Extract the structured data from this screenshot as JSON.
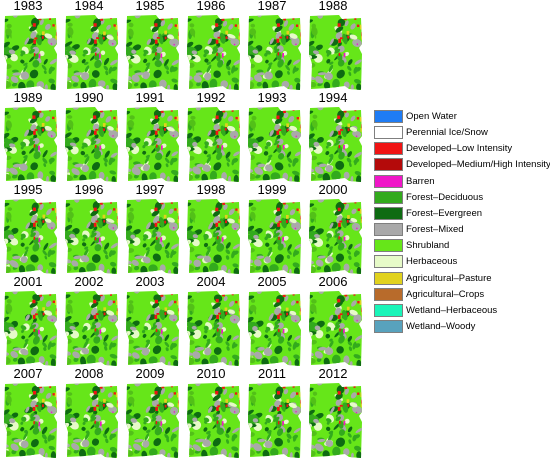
{
  "years": [
    "1983",
    "1984",
    "1985",
    "1986",
    "1987",
    "1988",
    "1989",
    "1990",
    "1991",
    "1992",
    "1993",
    "1994",
    "1995",
    "1996",
    "1997",
    "1998",
    "1999",
    "2000",
    "2001",
    "2002",
    "2003",
    "2004",
    "2005",
    "2006",
    "2007",
    "2008",
    "2009",
    "2010",
    "2011",
    "2012"
  ],
  "legend": [
    {
      "label": "Open Water",
      "color": "#1f7cf4"
    },
    {
      "label": "Perennial Ice/Snow",
      "color": "#ffffff"
    },
    {
      "label": "Developed–Low Intensity",
      "color": "#f01414"
    },
    {
      "label": "Developed–Medium/High Intensity",
      "color": "#b40a0a"
    },
    {
      "label": "Barren",
      "color": "#f016c8"
    },
    {
      "label": "Forest–Deciduous",
      "color": "#33aa1d"
    },
    {
      "label": "Forest–Evergreen",
      "color": "#0e6b12"
    },
    {
      "label": "Forest–Mixed",
      "color": "#a9a9a9"
    },
    {
      "label": "Shrubland",
      "color": "#66e619"
    },
    {
      "label": "Herbaceous",
      "color": "#e6fac8"
    },
    {
      "label": "Agricultural–Pasture",
      "color": "#e1d21e"
    },
    {
      "label": "Agricultural–Crops",
      "color": "#b86b2b"
    },
    {
      "label": "Wetland–Herbaceous",
      "color": "#19f5b9"
    },
    {
      "label": "Wetland–Woody",
      "color": "#58a2bd"
    }
  ]
}
